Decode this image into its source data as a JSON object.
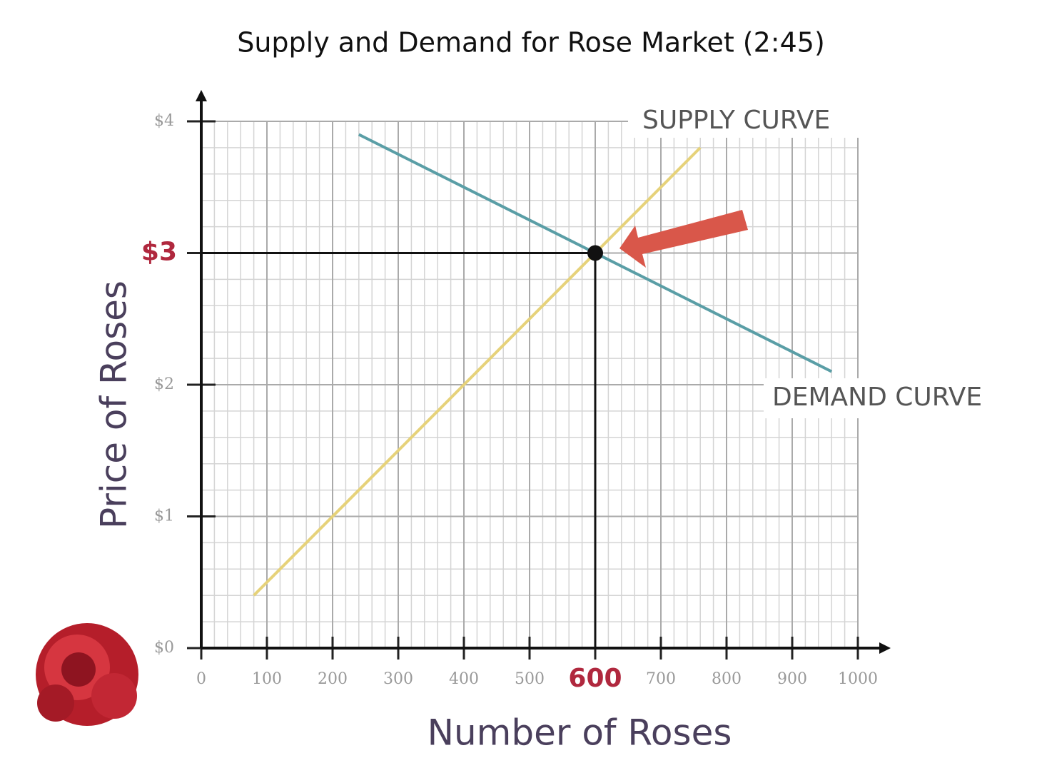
{
  "chart_data": {
    "type": "line",
    "title": "Supply and Demand for Rose Market (2:45)",
    "x_label": "Number of Roses",
    "y_label": "Price of Roses",
    "xlim": [
      0,
      1000
    ],
    "ylim": [
      0,
      4
    ],
    "xticks": [
      0,
      100,
      200,
      300,
      400,
      500,
      600,
      700,
      800,
      900,
      1000
    ],
    "yticks": [
      {
        "value": 0,
        "label": "$0"
      },
      {
        "value": 1,
        "label": "$1"
      },
      {
        "value": 2,
        "label": "$2"
      },
      {
        "value": 3,
        "label": "$3"
      },
      {
        "value": 4,
        "label": "$4"
      }
    ],
    "grid": true,
    "minor_grid": {
      "x": 20,
      "y": 0.2
    },
    "series": [
      {
        "name": "SUPPLY CURVE",
        "color": "#e6d27a",
        "x": [
          80,
          760
        ],
        "values": [
          0.4,
          3.8
        ]
      },
      {
        "name": "DEMAND CURVE",
        "color": "#5a9ea6",
        "x": [
          240,
          960
        ],
        "values": [
          3.9,
          2.1
        ]
      }
    ],
    "equilibrium": {
      "x": 600,
      "y": 3
    }
  }
}
